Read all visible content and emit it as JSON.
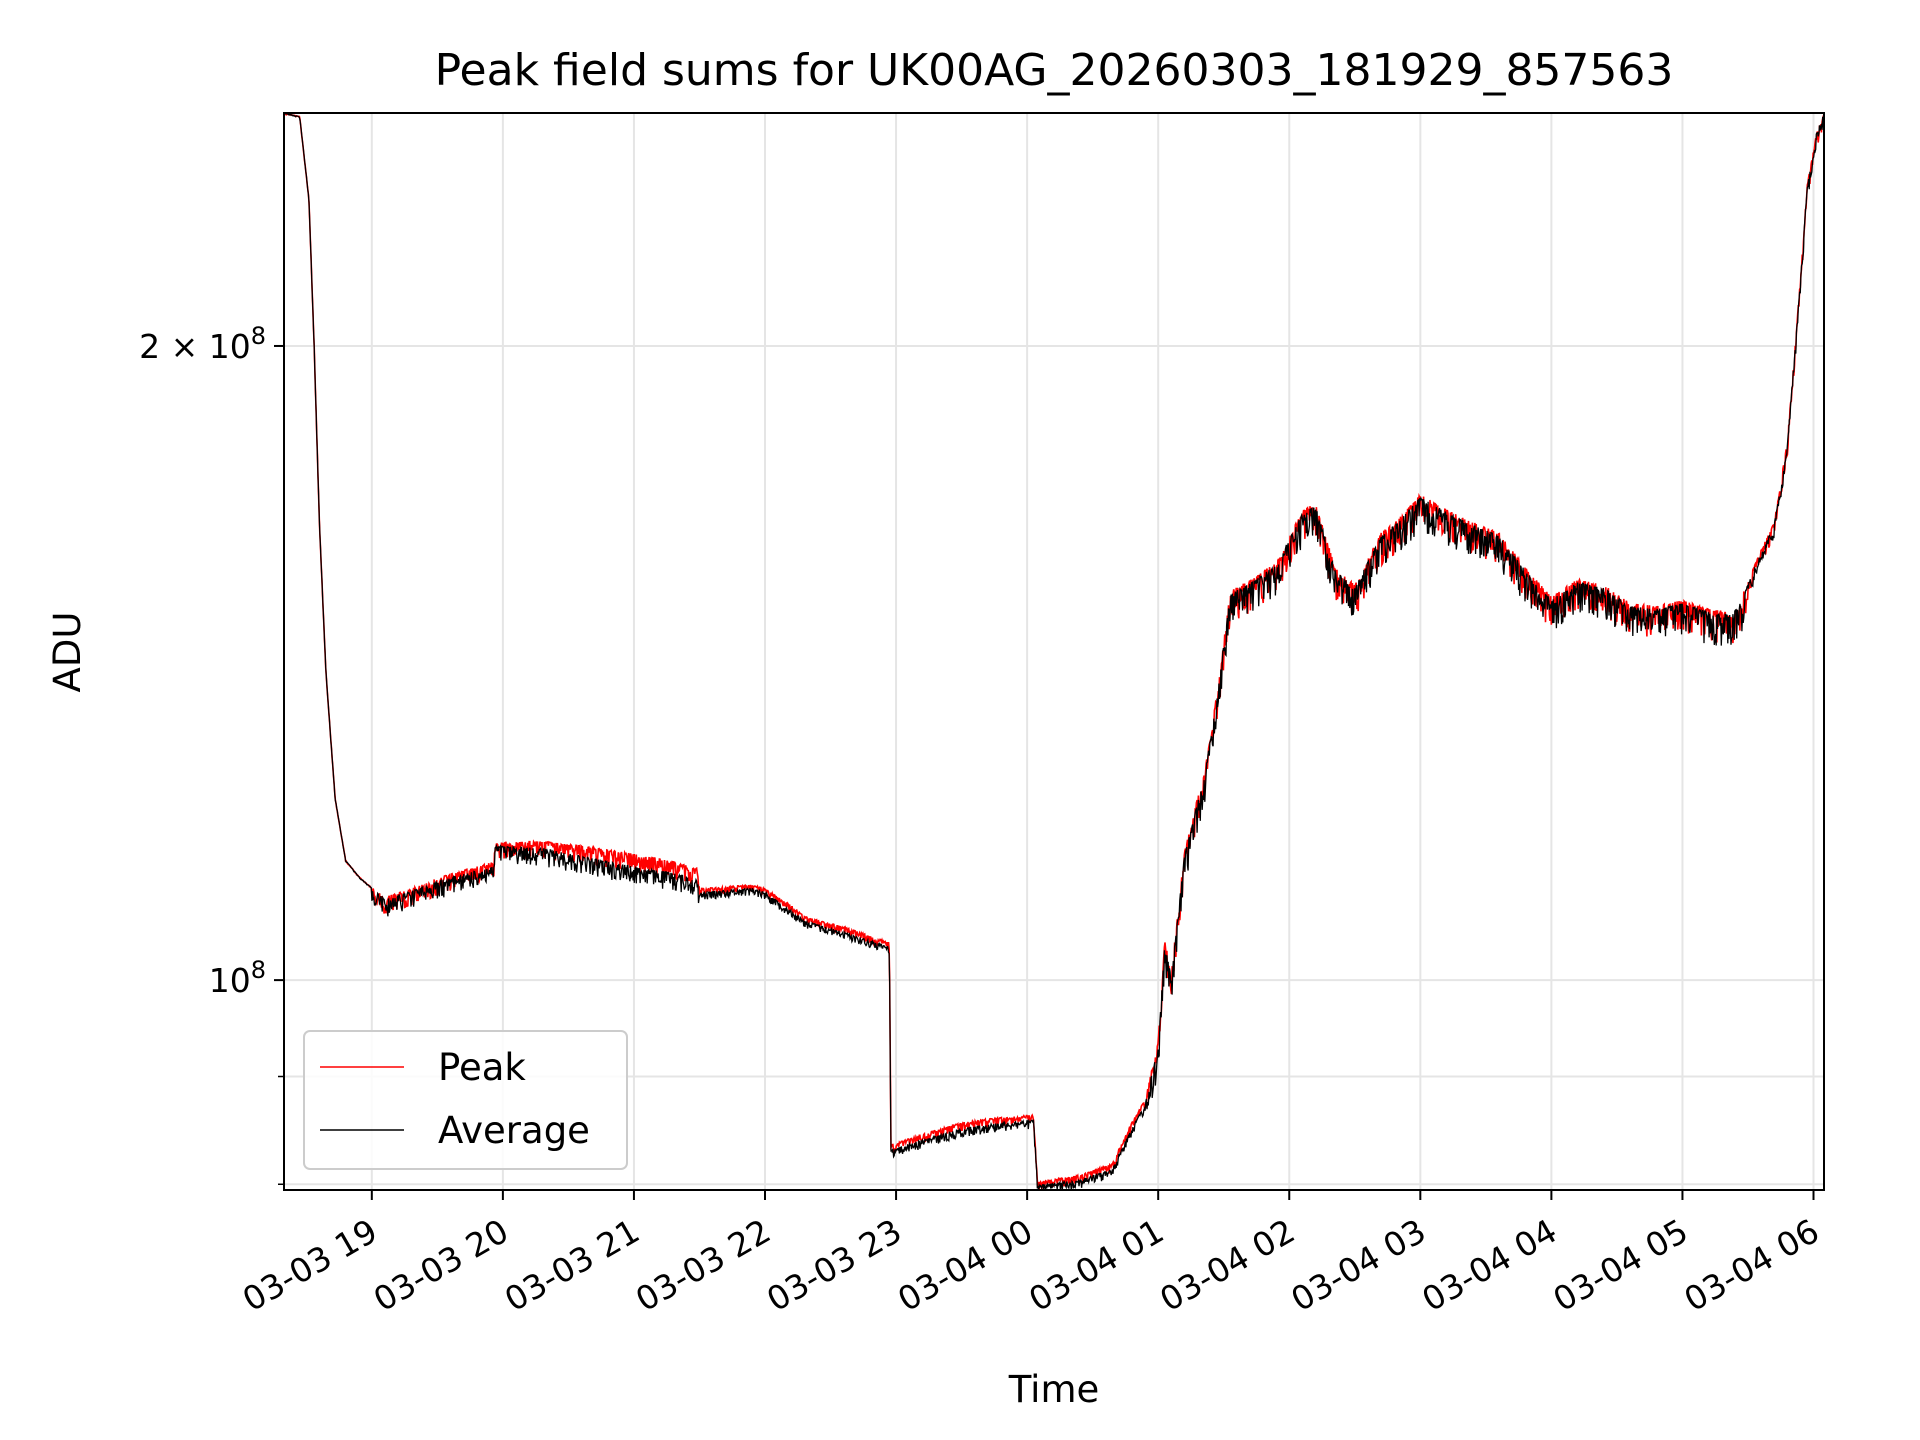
{
  "chart_data": {
    "type": "line",
    "title": "Peak field sums for UK00AG_20260303_181929_857563",
    "xlabel": "Time",
    "ylabel": "ADU",
    "yscale": "log",
    "ylim": [
      79500000,
      258000000
    ],
    "xlim_hours_from_0303_00": [
      18.33,
      30.08
    ],
    "grid": true,
    "legend_position": "lower-left",
    "x_tick_labels": [
      "03-03 19",
      "03-03 20",
      "03-03 21",
      "03-03 22",
      "03-03 23",
      "03-04 00",
      "03-04 01",
      "03-04 02",
      "03-04 03",
      "03-04 04",
      "03-04 05",
      "03-04 06"
    ],
    "x_tick_hours": [
      19,
      20,
      21,
      22,
      23,
      24,
      25,
      26,
      27,
      28,
      29,
      30
    ],
    "y_major_ticks": [
      {
        "value": 100000000,
        "base": "10",
        "exp": "8",
        "label": ""
      },
      {
        "value": 200000000,
        "base": "10",
        "exp": "8",
        "label": "2 × "
      }
    ],
    "y_minor_ticks": [
      80000000,
      90000000
    ],
    "series": [
      {
        "name": "Peak",
        "color": "#ff0000",
        "anchors": [
          [
            18.33,
            258000000
          ],
          [
            18.45,
            257000000
          ],
          [
            18.52,
            235000000
          ],
          [
            18.56,
            200000000
          ],
          [
            18.6,
            165000000
          ],
          [
            18.65,
            140000000
          ],
          [
            18.72,
            122000000
          ],
          [
            18.8,
            114000000
          ],
          [
            18.9,
            112000000
          ],
          [
            18.97,
            111000000
          ],
          [
            19.1,
            109500000
          ],
          [
            19.3,
            110500000
          ],
          [
            19.5,
            111800000
          ],
          [
            19.75,
            113000000
          ],
          [
            19.93,
            113800000
          ],
          [
            19.94,
            116200000
          ],
          [
            20.3,
            116400000
          ],
          [
            20.6,
            115800000
          ],
          [
            21.0,
            114800000
          ],
          [
            21.3,
            113800000
          ],
          [
            21.48,
            113000000
          ],
          [
            21.5,
            110500000
          ],
          [
            21.9,
            111000000
          ],
          [
            22.0,
            110500000
          ],
          [
            22.2,
            108500000
          ],
          [
            22.3,
            107200000
          ],
          [
            22.6,
            106000000
          ],
          [
            22.95,
            104200000
          ],
          [
            22.96,
            83500000
          ],
          [
            23.15,
            84300000
          ],
          [
            23.5,
            85600000
          ],
          [
            23.75,
            86000000
          ],
          [
            24.05,
            86300000
          ],
          [
            24.08,
            80200000
          ],
          [
            24.4,
            80800000
          ],
          [
            24.65,
            81800000
          ],
          [
            24.75,
            84500000
          ],
          [
            24.9,
            87800000
          ],
          [
            25.0,
            93500000
          ],
          [
            25.05,
            104500000
          ],
          [
            25.1,
            100800000
          ],
          [
            25.2,
            115000000
          ],
          [
            25.3,
            122000000
          ],
          [
            25.35,
            125000000
          ],
          [
            25.45,
            137000000
          ],
          [
            25.55,
            153000000
          ],
          [
            25.75,
            155500000
          ],
          [
            25.9,
            158000000
          ],
          [
            26.1,
            167000000
          ],
          [
            26.2,
            168500000
          ],
          [
            26.35,
            157000000
          ],
          [
            26.5,
            154000000
          ],
          [
            26.7,
            163000000
          ],
          [
            26.85,
            166000000
          ],
          [
            27.0,
            170000000
          ],
          [
            27.3,
            166000000
          ],
          [
            27.6,
            163000000
          ],
          [
            27.8,
            157000000
          ],
          [
            28.0,
            152000000
          ],
          [
            28.2,
            155000000
          ],
          [
            28.4,
            154000000
          ],
          [
            28.6,
            151000000
          ],
          [
            28.8,
            150500000
          ],
          [
            29.0,
            151500000
          ],
          [
            29.2,
            150000000
          ],
          [
            29.38,
            149500000
          ],
          [
            29.45,
            152000000
          ],
          [
            29.6,
            160000000
          ],
          [
            29.7,
            165000000
          ],
          [
            29.8,
            180000000
          ],
          [
            29.9,
            215000000
          ],
          [
            29.95,
            238000000
          ],
          [
            30.02,
            252000000
          ],
          [
            30.08,
            258000000
          ]
        ]
      },
      {
        "name": "Average",
        "color": "#000000",
        "anchors": [
          [
            18.33,
            258000000
          ],
          [
            18.45,
            257000000
          ],
          [
            18.52,
            235000000
          ],
          [
            18.56,
            200000000
          ],
          [
            18.6,
            165000000
          ],
          [
            18.65,
            140000000
          ],
          [
            18.72,
            122000000
          ],
          [
            18.8,
            114000000
          ],
          [
            18.9,
            112000000
          ],
          [
            18.97,
            111000000
          ],
          [
            19.1,
            109200000
          ],
          [
            19.3,
            110200000
          ],
          [
            19.5,
            111400000
          ],
          [
            19.75,
            112500000
          ],
          [
            19.93,
            113200000
          ],
          [
            19.94,
            115800000
          ],
          [
            20.3,
            115500000
          ],
          [
            20.6,
            114500000
          ],
          [
            21.0,
            113200000
          ],
          [
            21.3,
            112400000
          ],
          [
            21.48,
            111700000
          ],
          [
            21.5,
            110000000
          ],
          [
            21.9,
            110600000
          ],
          [
            22.0,
            110100000
          ],
          [
            22.2,
            107900000
          ],
          [
            22.3,
            106700000
          ],
          [
            22.6,
            105400000
          ],
          [
            22.95,
            103700000
          ],
          [
            22.96,
            83100000
          ],
          [
            23.15,
            83800000
          ],
          [
            23.5,
            85000000
          ],
          [
            23.75,
            85500000
          ],
          [
            24.05,
            85800000
          ],
          [
            24.08,
            79900000
          ],
          [
            24.4,
            80400000
          ],
          [
            24.65,
            81300000
          ],
          [
            24.75,
            84000000
          ],
          [
            24.9,
            87300000
          ],
          [
            25.0,
            93000000
          ],
          [
            25.05,
            104000000
          ],
          [
            25.1,
            100300000
          ],
          [
            25.2,
            114500000
          ],
          [
            25.3,
            121500000
          ],
          [
            25.35,
            124500000
          ],
          [
            25.45,
            136500000
          ],
          [
            25.55,
            152500000
          ],
          [
            25.75,
            155000000
          ],
          [
            25.9,
            157500000
          ],
          [
            26.1,
            166500000
          ],
          [
            26.2,
            168000000
          ],
          [
            26.35,
            156500000
          ],
          [
            26.5,
            153500000
          ],
          [
            26.7,
            162500000
          ],
          [
            26.85,
            165500000
          ],
          [
            27.0,
            169500000
          ],
          [
            27.3,
            165500000
          ],
          [
            27.6,
            162500000
          ],
          [
            27.8,
            156500000
          ],
          [
            28.0,
            151500000
          ],
          [
            28.2,
            154500000
          ],
          [
            28.4,
            153500000
          ],
          [
            28.6,
            150500000
          ],
          [
            28.8,
            150000000
          ],
          [
            29.0,
            151000000
          ],
          [
            29.2,
            149500000
          ],
          [
            29.38,
            149000000
          ],
          [
            29.45,
            151500000
          ],
          [
            29.6,
            159500000
          ],
          [
            29.7,
            164500000
          ],
          [
            29.8,
            179500000
          ],
          [
            29.9,
            214500000
          ],
          [
            29.95,
            237500000
          ],
          [
            30.02,
            252000000
          ],
          [
            30.08,
            258000000
          ]
        ]
      }
    ],
    "legend": [
      "Peak",
      "Average"
    ]
  }
}
